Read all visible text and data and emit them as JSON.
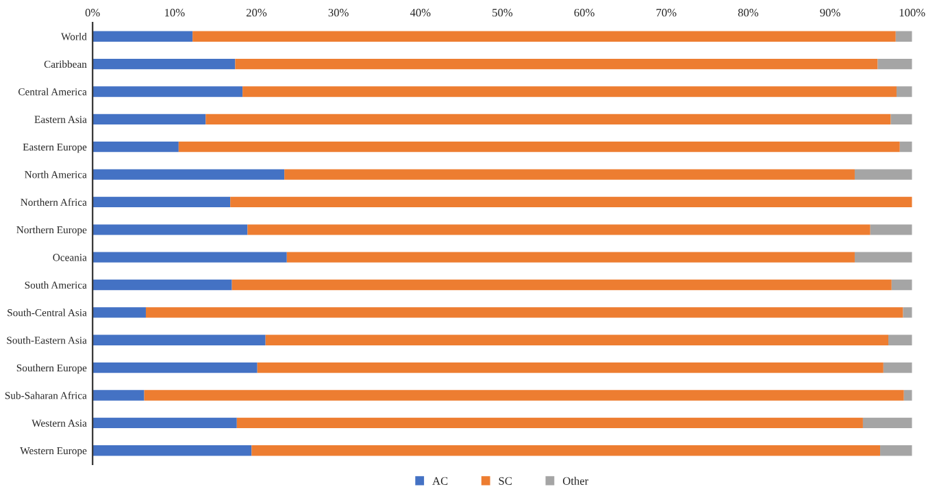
{
  "chart_data": {
    "type": "bar",
    "orientation": "horizontal",
    "stacked": true,
    "categories": [
      "World",
      "Caribbean",
      "Central America",
      "Eastern Asia",
      "Eastern Europe",
      "North America",
      "Northern Africa",
      "Northern Europe",
      "Oceania",
      "South America",
      "South-Central Asia",
      "South-Eastern Asia",
      "Southern Europe",
      "Sub-Saharan Africa",
      "Western Asia",
      "Western Europe"
    ],
    "series": [
      {
        "name": "AC",
        "color": "#4472c4",
        "values": [
          12.2,
          17.4,
          18.3,
          13.8,
          10.5,
          23.4,
          16.8,
          18.9,
          23.7,
          17.0,
          6.5,
          21.1,
          20.1,
          6.3,
          17.6,
          19.4
        ]
      },
      {
        "name": "SC",
        "color": "#ed7d31",
        "values": [
          85.8,
          78.4,
          79.8,
          83.6,
          88.0,
          69.6,
          83.2,
          76.0,
          69.3,
          80.5,
          92.4,
          76.0,
          76.4,
          92.7,
          76.4,
          76.7
        ]
      },
      {
        "name": "Other",
        "color": "#a5a5a5",
        "values": [
          2.0,
          4.2,
          1.9,
          2.6,
          1.5,
          7.0,
          0,
          5.1,
          7.0,
          2.5,
          1.1,
          2.9,
          3.5,
          1.0,
          6.0,
          3.9
        ]
      }
    ],
    "xlim": [
      0,
      100
    ],
    "xticks": [
      {
        "value": 0,
        "label": "0%"
      },
      {
        "value": 10,
        "label": "10%"
      },
      {
        "value": 20,
        "label": "20%"
      },
      {
        "value": 30,
        "label": "30%"
      },
      {
        "value": 40,
        "label": "40%"
      },
      {
        "value": 50,
        "label": "50%"
      },
      {
        "value": 60,
        "label": "60%"
      },
      {
        "value": 70,
        "label": "70%"
      },
      {
        "value": 80,
        "label": "80%"
      },
      {
        "value": 90,
        "label": "90%"
      },
      {
        "value": 100,
        "label": "100%"
      }
    ],
    "grid": false,
    "legend": "bottom"
  }
}
